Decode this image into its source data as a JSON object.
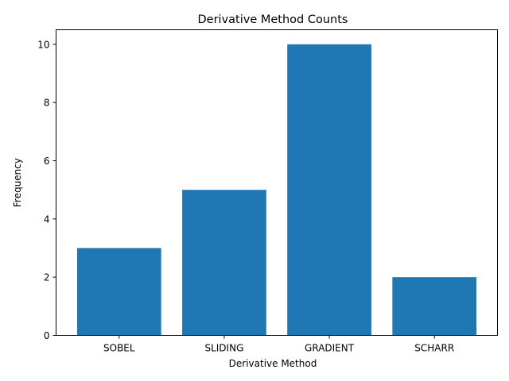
{
  "chart_data": {
    "type": "bar",
    "title": "Derivative Method Counts",
    "xlabel": "Derivative Method",
    "ylabel": "Frequency",
    "categories": [
      "SOBEL",
      "SLIDING",
      "GRADIENT",
      "SCHARR"
    ],
    "values": [
      3,
      5,
      10,
      2
    ],
    "ylim": [
      0,
      10.5
    ],
    "yticks": [
      0,
      2,
      4,
      6,
      8,
      10
    ],
    "bar_color": "#1f77b4",
    "grid": false,
    "legend": "none"
  }
}
